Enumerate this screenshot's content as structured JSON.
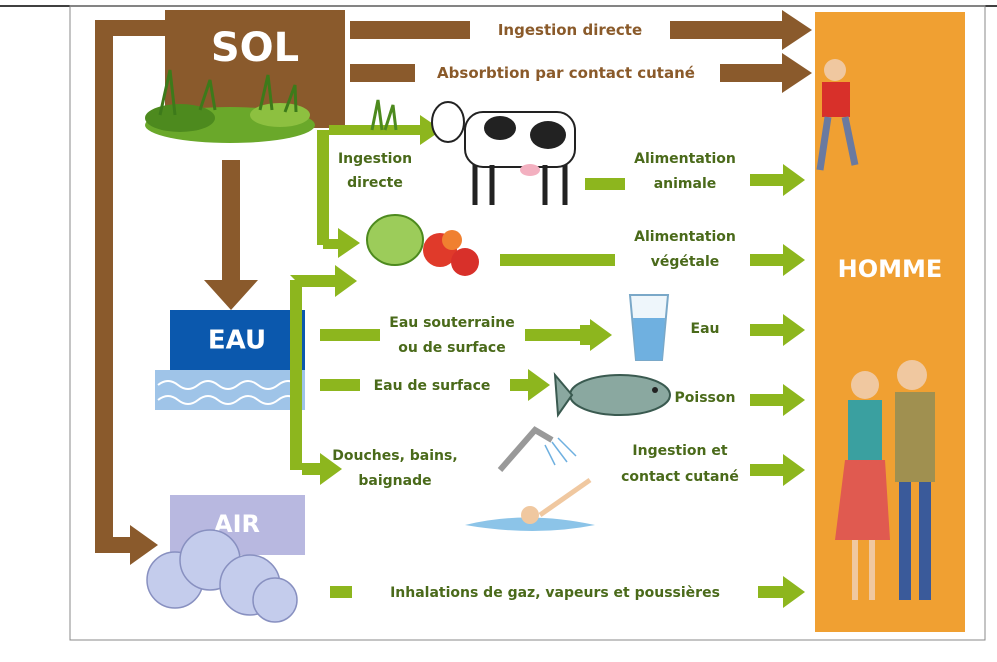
{
  "nodes": {
    "sol": "SOL",
    "eau": "EAU",
    "air": "AIR",
    "homme": "HOMME"
  },
  "paths": {
    "sol_ingestion": "Ingestion directe",
    "sol_contact": "Absorbtion par contact cutané",
    "cow_ingestion": [
      "Ingestion",
      "directe"
    ],
    "animal": [
      "Alimentation",
      "animale"
    ],
    "vegetal": [
      "Alimentation",
      "végétale"
    ],
    "groundwater": [
      "Eau souterraine",
      "ou de surface"
    ],
    "water": "Eau",
    "surface_water": "Eau de surface",
    "fish": "Poisson",
    "bathing": [
      "Douches, bains,",
      "baignade"
    ],
    "bath_exposure": [
      "Ingestion et",
      "contact cutané"
    ],
    "inhalation": "Inhalations de gaz, vapeurs et poussières"
  }
}
